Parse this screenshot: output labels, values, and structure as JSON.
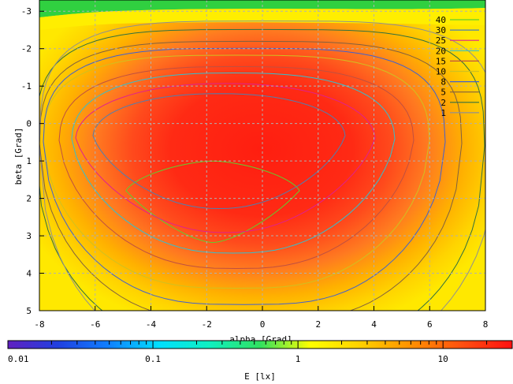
{
  "chart_data": {
    "type": "heatmap",
    "title": "",
    "xlabel": "alpha [Grad]",
    "ylabel": "beta [Grad]",
    "xlim": [
      -8,
      8
    ],
    "ylim": [
      -3.3,
      5
    ],
    "y_inverted": true,
    "xticks": [
      -8,
      -6,
      -4,
      -2,
      0,
      2,
      4,
      6,
      8
    ],
    "yticks": [
      -3,
      -2,
      -1,
      0,
      1,
      2,
      3,
      4,
      5
    ],
    "grid": true,
    "legend_position": "top-right",
    "contour_levels": [
      {
        "level": 40,
        "label": "40",
        "color": "#5fcf2f"
      },
      {
        "level": 30,
        "label": "30",
        "color": "#4f7fb0"
      },
      {
        "level": 25,
        "label": "25",
        "color": "#e0208f"
      },
      {
        "level": 20,
        "label": "20",
        "color": "#30c0d0"
      },
      {
        "level": 15,
        "label": "15",
        "color": "#c05040"
      },
      {
        "level": 10,
        "label": "10",
        "color": "#d0c020"
      },
      {
        "level": 8,
        "label": "8",
        "color": "#4060d0"
      },
      {
        "level": 5,
        "label": "5",
        "color": "#806040"
      },
      {
        "level": 2,
        "label": "2",
        "color": "#307040"
      },
      {
        "level": 1,
        "label": "1",
        "color": "#909090"
      }
    ],
    "colorbar": {
      "label": "E [lx]",
      "scale": "log",
      "range": [
        0.01,
        30
      ],
      "ticks": [
        {
          "value": 0.01,
          "label": "0.01"
        },
        {
          "value": 0.1,
          "label": "0.1"
        },
        {
          "value": 1,
          "label": "1"
        },
        {
          "value": 10,
          "label": "10"
        }
      ],
      "palette": [
        "#6020c0",
        "#2040e0",
        "#1080ff",
        "#00e0ff",
        "#10f0c0",
        "#30e060",
        "#ffff00",
        "#ffd000",
        "#ff9000",
        "#ff5010",
        "#ff1010"
      ]
    }
  }
}
